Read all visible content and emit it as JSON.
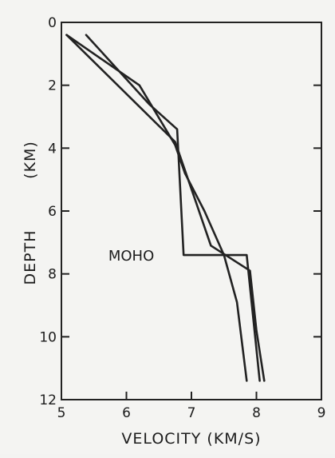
{
  "chart_data": {
    "type": "line",
    "title": "",
    "xlabel": "VELOCITY (KM/S)",
    "ylabel": "DEPTH",
    "ylabel_unit": "(KM)",
    "xlim": [
      5,
      9
    ],
    "ylim": [
      0,
      12
    ],
    "y_inverted": true,
    "x_ticks": [
      "5",
      "6",
      "7",
      "8",
      "9"
    ],
    "y_ticks": [
      "0",
      "2",
      "4",
      "6",
      "8",
      "10",
      "12"
    ],
    "grid": false,
    "line_color": "#222222",
    "annotations": [
      {
        "text": "MOHO",
        "x": 6.5,
        "y": 7.4
      }
    ],
    "series": [
      {
        "x": [
          5.08,
          6.2,
          6.75,
          6.9,
          7.2,
          7.5,
          7.7,
          7.85
        ],
        "y": [
          0.4,
          2.0,
          3.9,
          4.8,
          6.0,
          7.4,
          8.9,
          11.4
        ]
      },
      {
        "x": [
          5.38,
          6.35,
          6.78,
          6.78,
          6.88,
          6.88,
          7.85,
          7.85,
          8.05
        ],
        "y": [
          0.4,
          2.6,
          3.4,
          3.4,
          7.4,
          7.4,
          7.4,
          7.4,
          11.4
        ]
      },
      {
        "x": [
          5.08,
          6.75,
          7.05,
          7.3,
          7.9,
          8.0,
          8.12
        ],
        "y": [
          0.4,
          3.8,
          5.6,
          7.1,
          7.9,
          9.8,
          11.4
        ]
      }
    ]
  }
}
